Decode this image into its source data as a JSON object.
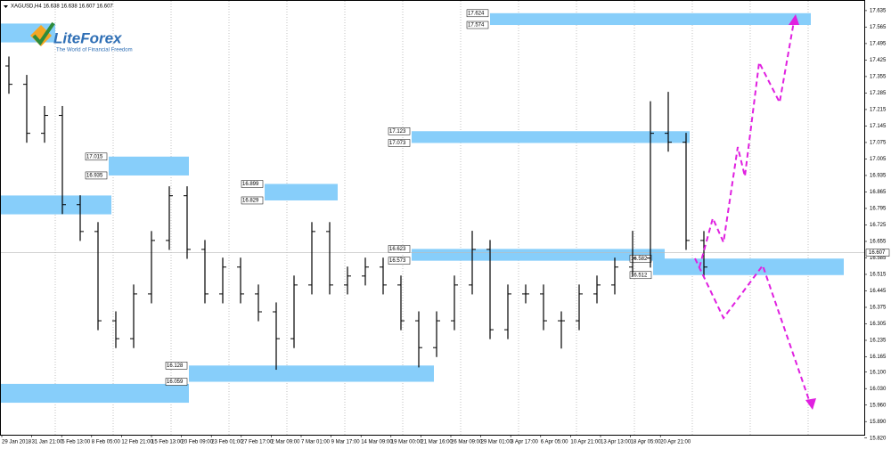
{
  "header": "XAGUSD,H4 16.638 16.638 16.607 16.607",
  "logo": {
    "name": "LiteForex",
    "tagline": "The World of Financial Freedom"
  },
  "chart_data": {
    "type": "candlestick",
    "ylim": [
      15.8,
      17.68
    ],
    "yticks": [
      {
        "value": 15.82,
        "label": "15.820"
      },
      {
        "value": 15.89,
        "label": "15.890"
      },
      {
        "value": 15.96,
        "label": "15.960"
      },
      {
        "value": 16.03,
        "label": "16.030"
      },
      {
        "value": 16.1,
        "label": "16.100"
      },
      16.165,
      16.235,
      16.305,
      16.375,
      16.445,
      16.515,
      16.585,
      16.655,
      16.725,
      16.795,
      16.865,
      16.935,
      17.005,
      17.075,
      17.145,
      17.215,
      17.285,
      17.355,
      17.425,
      17.495,
      17.565,
      17.635
    ],
    "time_labels": [
      "29 Jan 2018",
      "31 Jan 21:00",
      "5 Feb 13:00",
      "8 Feb 05:00",
      "12 Feb 21:00",
      "15 Feb 13:00",
      "20 Feb 09:00",
      "23 Feb 01:00",
      "27 Feb 17:00",
      "2 Mar 09:00",
      "7 Mar 01:00",
      "9 Mar 17:00",
      "14 Mar 09:00",
      "19 Mar 00:00",
      "21 Mar 16:00",
      "26 Mar 09:00",
      "29 Mar 01:00",
      "3 Apr 17:00",
      "6 Apr 05:00",
      "10 Apr 21:00",
      "13 Apr 13:00",
      "18 Apr 05:00",
      "20 Apr 21:00"
    ],
    "color": "#000000",
    "open": [
      17.4,
      17.322,
      17.114,
      17.19,
      16.811,
      16.697,
      16.318,
      16.242,
      16.432,
      16.659,
      16.849,
      16.621,
      16.432,
      16.546,
      16.432,
      16.356,
      16.242,
      16.47,
      16.697,
      16.47,
      16.508,
      16.546,
      16.47,
      16.318,
      16.204,
      16.318,
      16.47,
      16.621,
      16.28,
      16.432,
      16.432,
      16.318,
      16.318,
      16.432,
      16.47,
      16.546,
      16.584,
      17.114,
      17.076,
      16.659
    ],
    "high": [
      17.44,
      17.362,
      17.23,
      17.23,
      16.851,
      16.737,
      16.358,
      16.472,
      16.699,
      16.889,
      16.889,
      16.661,
      16.586,
      16.586,
      16.472,
      16.396,
      16.51,
      16.737,
      16.737,
      16.548,
      16.586,
      16.586,
      16.51,
      16.358,
      16.358,
      16.51,
      16.7,
      16.661,
      16.472,
      16.472,
      16.472,
      16.358,
      16.472,
      16.51,
      16.586,
      16.7,
      17.25,
      17.29,
      17.116,
      16.699
    ],
    "low": [
      17.282,
      17.074,
      17.074,
      16.771,
      16.657,
      16.278,
      16.202,
      16.202,
      16.392,
      16.619,
      16.581,
      16.392,
      16.392,
      16.392,
      16.316,
      16.11,
      16.202,
      16.43,
      16.43,
      16.43,
      16.468,
      16.43,
      16.278,
      16.12,
      16.164,
      16.278,
      16.43,
      16.24,
      16.24,
      16.392,
      16.278,
      16.2,
      16.278,
      16.392,
      16.43,
      16.506,
      16.544,
      17.036,
      16.619,
      16.506
    ],
    "close": [
      17.322,
      17.114,
      17.19,
      16.811,
      16.697,
      16.318,
      16.242,
      16.432,
      16.659,
      16.849,
      16.621,
      16.432,
      16.546,
      16.432,
      16.356,
      16.242,
      16.47,
      16.697,
      16.47,
      16.508,
      16.546,
      16.47,
      16.318,
      16.204,
      16.318,
      16.47,
      16.621,
      16.28,
      16.432,
      16.432,
      16.318,
      16.318,
      16.432,
      16.47,
      16.546,
      16.584,
      17.114,
      17.076,
      16.659,
      16.546
    ],
    "last": 16.607,
    "zone_color": "#87cefa",
    "zones": [
      {
        "high": 17.624,
        "low": 17.574,
        "x0": 27,
        "x1": 45
      },
      {
        "high": 17.123,
        "low": 17.073,
        "x0": 22.6,
        "x1": 38.2
      },
      {
        "high": 17.015,
        "low": 16.935,
        "x0": 5.6,
        "x1": 10.1
      },
      {
        "high": 16.899,
        "low": 16.829,
        "x0": 14.35,
        "x1": 18.45
      },
      {
        "high": 16.623,
        "low": 16.573,
        "x0": 22.6,
        "x1": 36.8
      },
      {
        "high": 16.582,
        "low": 16.512,
        "x0": 36.15,
        "x1": 46.85
      },
      {
        "high": 16.128,
        "low": 16.059,
        "x0": 10.1,
        "x1": 23.85
      }
    ],
    "unlabeled_zones": [
      {
        "high": 17.58,
        "low": 17.5,
        "x0": -0.5,
        "x1": 2.6
      },
      {
        "high": 16.85,
        "low": 16.77,
        "x0": -0.5,
        "x1": 5.75
      },
      {
        "high": 16.05,
        "low": 15.97,
        "x0": -0.5,
        "x1": 10.1
      }
    ]
  }
}
